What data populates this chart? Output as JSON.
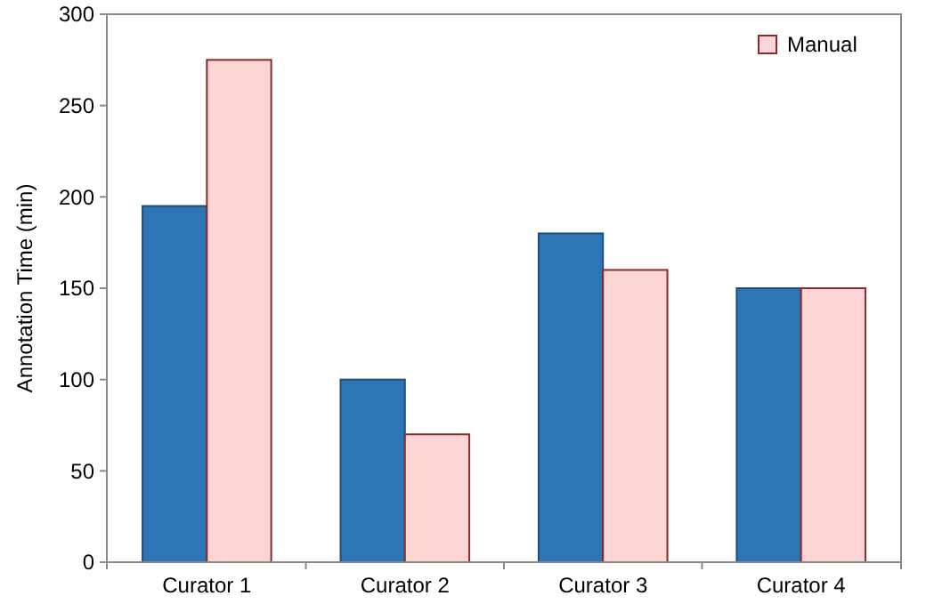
{
  "chart_data": {
    "type": "bar",
    "ylabel": "Annotation Time (min)",
    "categories": [
      "Curator 1",
      "Curator 2",
      "Curator 3",
      "Curator 4"
    ],
    "series": [
      {
        "color": "#2e75b6",
        "values": [
          195,
          100,
          180,
          150
        ]
      },
      {
        "name": "Manual",
        "color": "#fcd5d5",
        "values": [
          275,
          70,
          160,
          150
        ]
      }
    ],
    "ylim": [
      0,
      300
    ],
    "yticks": [
      0,
      50,
      100,
      150,
      200,
      250,
      300
    ],
    "grid": false,
    "legend": "top right"
  }
}
